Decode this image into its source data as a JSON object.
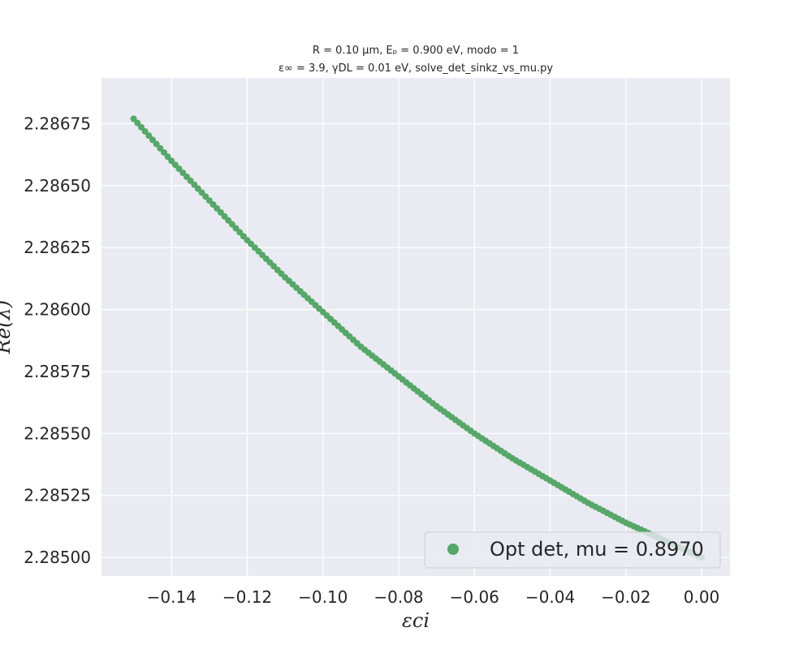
{
  "chart_data": {
    "type": "scatter",
    "title_line1": "R = 0.10 μm, Eₚ = 0.900 eV, modo = 1",
    "title_line2": "ε∞ = 3.9, γDL = 0.01 eV, solve_det_sinkz_vs_mu.py",
    "xlabel": "εci",
    "ylabel": "Re(λ)",
    "xlim": [
      -0.1585,
      0.0075
    ],
    "ylim": [
      2.284925,
      2.286935
    ],
    "xticks": [
      -0.14,
      -0.12,
      -0.1,
      -0.08,
      -0.06,
      -0.04,
      -0.02,
      0.0
    ],
    "xtick_labels": [
      "−0.14",
      "−0.12",
      "−0.10",
      "−0.08",
      "−0.06",
      "−0.04",
      "−0.02",
      "0.00"
    ],
    "yticks": [
      2.285,
      2.28525,
      2.2855,
      2.28575,
      2.286,
      2.28625,
      2.2865,
      2.28675
    ],
    "ytick_labels": [
      "2.28500",
      "2.28525",
      "2.28550",
      "2.28575",
      "2.28600",
      "2.28625",
      "2.28650",
      "2.28675"
    ],
    "grid": true,
    "legend_position": "lower-right",
    "series": [
      {
        "name": "Opt det, mu = 0.8970",
        "color": "#55a868",
        "x_start": -0.15,
        "x_end": 0.0,
        "n_points": 151,
        "x": [
          -0.15,
          -0.14,
          -0.13,
          -0.12,
          -0.11,
          -0.1,
          -0.09,
          -0.08,
          -0.07,
          -0.06,
          -0.05,
          -0.04,
          -0.03,
          -0.02,
          -0.01,
          0.0
        ],
        "y": [
          2.28677,
          2.2866,
          2.28644,
          2.28628,
          2.28613,
          2.28599,
          2.28585,
          2.28573,
          2.28561,
          2.2855,
          2.2854,
          2.28531,
          2.28522,
          2.28514,
          2.28507,
          2.285
        ]
      }
    ]
  }
}
